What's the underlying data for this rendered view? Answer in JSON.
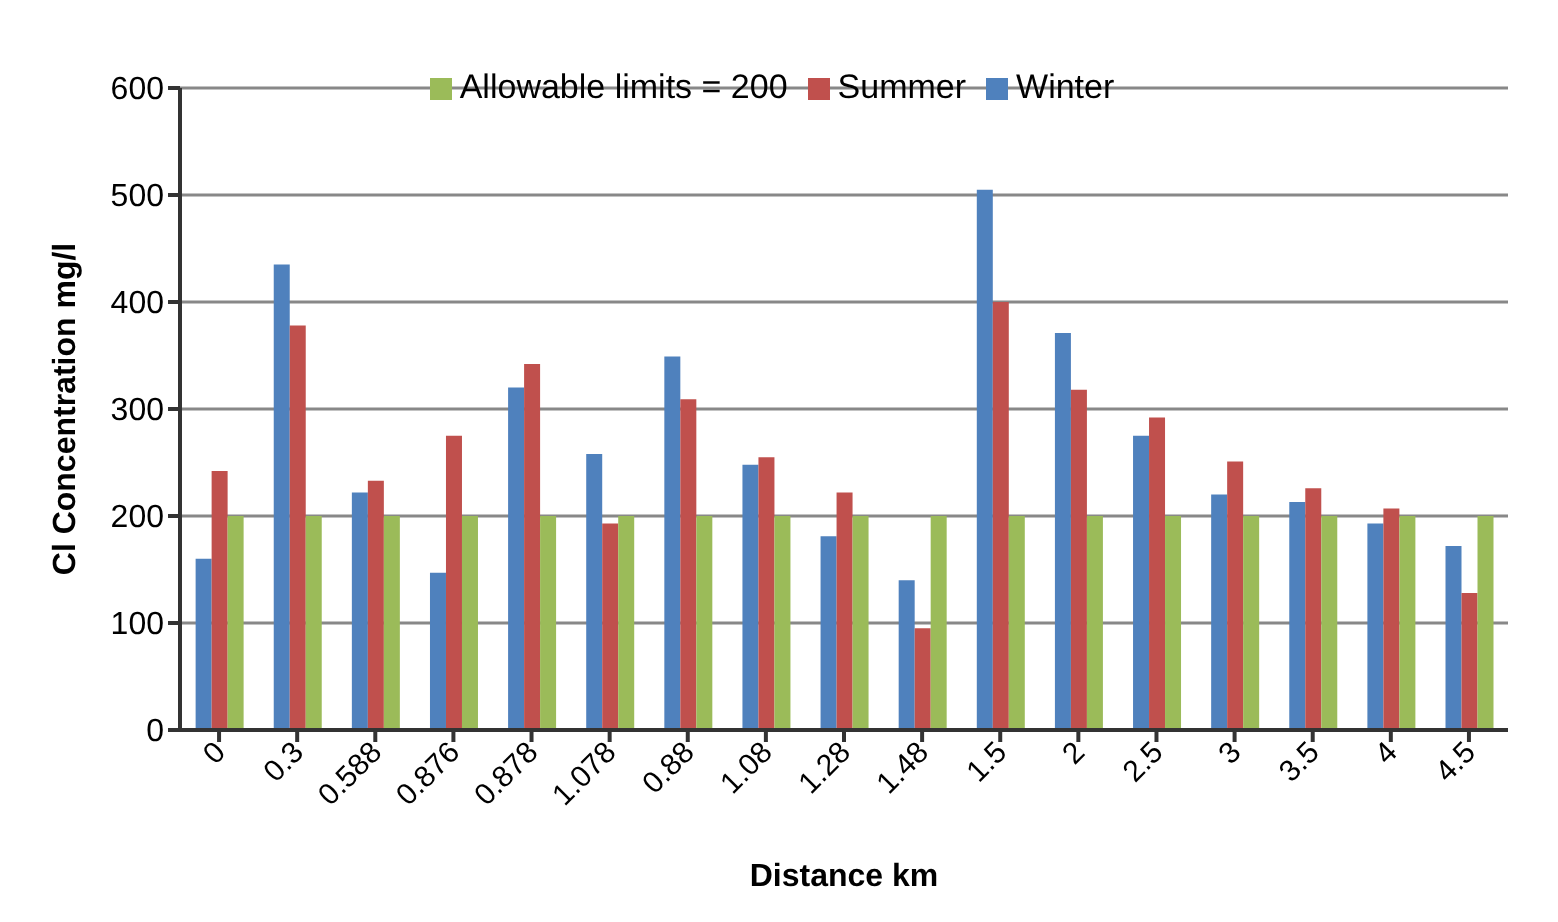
{
  "chart_data": {
    "type": "bar",
    "xlabel": "Distance km",
    "ylabel": "Cl Concentration mg/l",
    "categories": [
      "0",
      "0.3",
      "0.588",
      "0.876",
      "0.878",
      "1.078",
      "0.88",
      "1.08",
      "1.28",
      "1.48",
      "1.5",
      "2",
      "2.5",
      "3",
      "3.5",
      "4",
      "4.5"
    ],
    "series": [
      {
        "name": "Winter",
        "color": "#4f81bd",
        "values": [
          160,
          435,
          222,
          147,
          320,
          258,
          349,
          248,
          181,
          140,
          505,
          371,
          275,
          220,
          213,
          193,
          172
        ]
      },
      {
        "name": "Summer",
        "color": "#c0504d",
        "values": [
          242,
          378,
          233,
          275,
          342,
          193,
          309,
          255,
          222,
          95,
          400,
          318,
          292,
          251,
          226,
          207,
          128
        ]
      },
      {
        "name": "Allowable limits = 200",
        "color": "#9bbb59",
        "values": [
          200,
          200,
          200,
          200,
          200,
          200,
          200,
          200,
          200,
          200,
          200,
          200,
          200,
          200,
          200,
          200,
          200
        ]
      }
    ],
    "ylim": [
      0,
      600
    ],
    "yticks": [
      0,
      100,
      200,
      300,
      400,
      500,
      600
    ],
    "grid": "y",
    "legend": "top"
  }
}
